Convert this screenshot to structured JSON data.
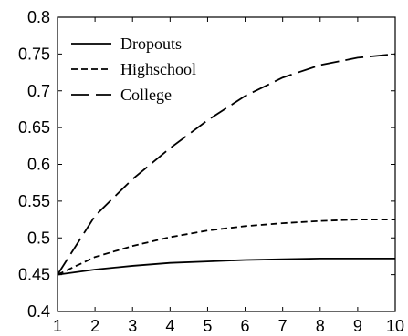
{
  "chart_data": {
    "type": "line",
    "title": "",
    "xlabel": "",
    "ylabel": "",
    "x": [
      1,
      2,
      3,
      4,
      5,
      6,
      7,
      8,
      9,
      10
    ],
    "xlim": [
      1,
      10
    ],
    "ylim": [
      0.4,
      0.8
    ],
    "xticks": [
      "1",
      "2",
      "3",
      "4",
      "5",
      "6",
      "7",
      "8",
      "9",
      "10"
    ],
    "yticks": [
      "0.4",
      "0.45",
      "0.5",
      "0.55",
      "0.6",
      "0.65",
      "0.7",
      "0.75",
      "0.8"
    ],
    "grid": false,
    "legend_position": "top-left",
    "series": [
      {
        "name": "Dropouts",
        "style": "solid",
        "color": "#000000",
        "values": [
          0.45,
          0.457,
          0.462,
          0.466,
          0.468,
          0.47,
          0.471,
          0.472,
          0.472,
          0.472
        ]
      },
      {
        "name": "Highschool",
        "style": "dashed",
        "color": "#000000",
        "values": [
          0.45,
          0.474,
          0.489,
          0.501,
          0.51,
          0.516,
          0.52,
          0.523,
          0.525,
          0.525
        ]
      },
      {
        "name": "College",
        "style": "long-dashed",
        "color": "#000000",
        "values": [
          0.45,
          0.53,
          0.58,
          0.622,
          0.66,
          0.693,
          0.718,
          0.735,
          0.745,
          0.75
        ]
      }
    ]
  }
}
